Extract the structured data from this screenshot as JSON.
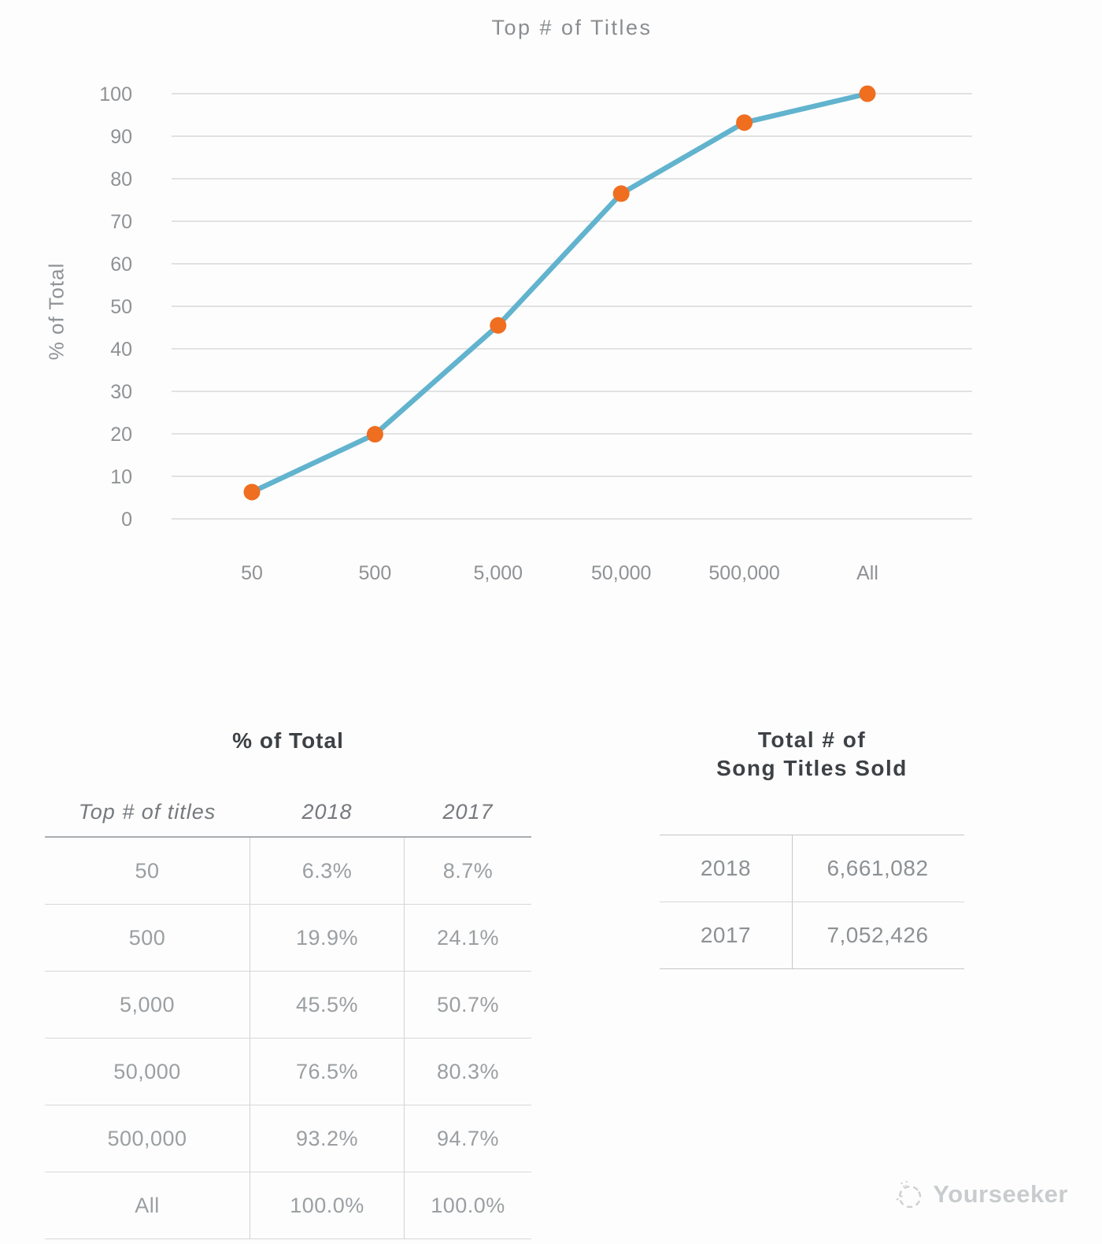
{
  "chart": {
    "title": "Top # of Titles",
    "y_axis_label": "% of Total"
  },
  "chart_data": {
    "type": "line",
    "title": "Top # of Titles",
    "xlabel": "",
    "ylabel": "% of Total",
    "categories": [
      "50",
      "500",
      "5,000",
      "50,000",
      "500,000",
      "All"
    ],
    "series": [
      {
        "name": "2018",
        "values": [
          6.3,
          19.9,
          45.5,
          76.5,
          93.2,
          100.0
        ]
      }
    ],
    "ylim": [
      0,
      100
    ],
    "ytick_step": 10,
    "grid": true,
    "legend_position": "none",
    "line_color": "#61b3ce",
    "marker_color": "#ef6e20"
  },
  "percent_table": {
    "title": "% of Total",
    "columns": [
      "Top # of titles",
      "2018",
      "2017"
    ],
    "rows": [
      [
        "50",
        "6.3%",
        "8.7%"
      ],
      [
        "500",
        "19.9%",
        "24.1%"
      ],
      [
        "5,000",
        "45.5%",
        "50.7%"
      ],
      [
        "50,000",
        "76.5%",
        "80.3%"
      ],
      [
        "500,000",
        "93.2%",
        "94.7%"
      ],
      [
        "All",
        "100.0%",
        "100.0%"
      ]
    ]
  },
  "totals_table": {
    "title_line1": "Total # of",
    "title_line2": "Song Titles Sold",
    "rows": [
      [
        "2018",
        "6,661,082"
      ],
      [
        "2017",
        "7,052,426"
      ]
    ]
  },
  "watermark": {
    "text": "Yourseeker"
  },
  "colors": {
    "background": "#fdfdfd",
    "gridline": "#d9dadb",
    "axis_text": "#8f9295",
    "line": "#61b3ce",
    "marker": "#ef6e20",
    "table_header": "#3d4145",
    "table_text": "#9b9fa2",
    "watermark": "#c9ccce"
  }
}
